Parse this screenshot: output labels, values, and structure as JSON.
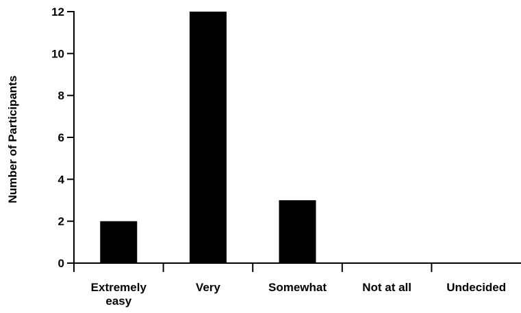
{
  "chart_data": {
    "type": "bar",
    "title": "",
    "xlabel": "",
    "ylabel": "Number of Participants",
    "categories": [
      [
        "Extremely",
        "easy"
      ],
      [
        "Very"
      ],
      [
        "Somewhat"
      ],
      [
        "Not at all"
      ],
      [
        "Undecided"
      ]
    ],
    "values": [
      2,
      12,
      3,
      0,
      0
    ],
    "yticks": [
      0,
      2,
      4,
      6,
      8,
      10,
      12
    ],
    "ylim": [
      0,
      12
    ],
    "grid": false,
    "legend": "none",
    "bar_color": "#000000"
  }
}
